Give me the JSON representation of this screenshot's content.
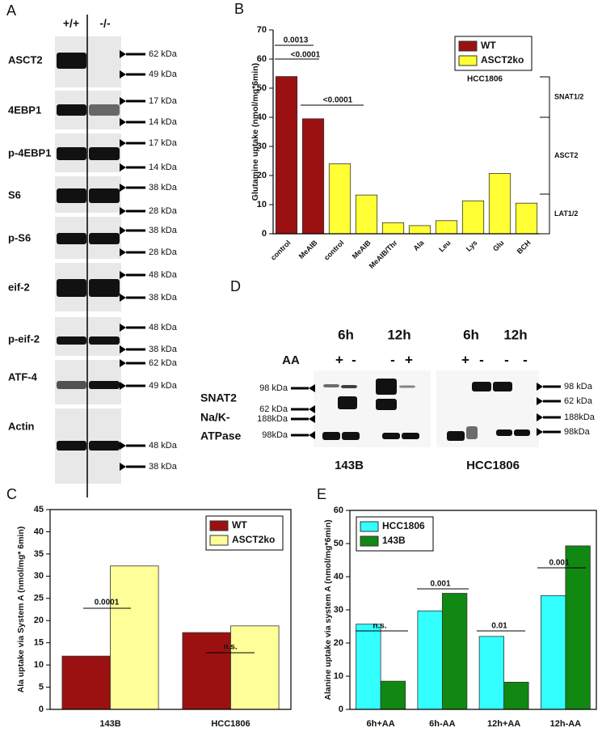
{
  "blot_a": {
    "panel": "A",
    "columns": [
      "+/+",
      "-/-"
    ],
    "rows": [
      {
        "label": "ASCT2",
        "markers": [
          "62 kDa",
          "49 kDa"
        ]
      },
      {
        "label": "4EBP1",
        "markers": [
          "17 kDa",
          "14 kDa"
        ]
      },
      {
        "label": "p-4EBP1",
        "markers": [
          "17 kDa",
          "14 kDa"
        ]
      },
      {
        "label": "S6",
        "markers": [
          "38 kDa",
          "28 kDa"
        ]
      },
      {
        "label": "p-S6",
        "markers": [
          "38 kDa",
          "28 kDa"
        ]
      },
      {
        "label": "eif-2",
        "markers": [
          "48 kDa",
          "38 kDa"
        ]
      },
      {
        "label": "p-eif-2",
        "markers": [
          "48 kDa",
          "38 kDa"
        ]
      },
      {
        "label": "ATF-4",
        "markers": [
          "62 kDa",
          "49 kDa"
        ]
      },
      {
        "label": "Actin",
        "markers": [
          "48 kDa",
          "38 kDa"
        ]
      }
    ]
  },
  "blot_d": {
    "panel": "D",
    "time_labels": [
      "6h",
      "12h",
      "6h",
      "12h"
    ],
    "aa_label": "AA",
    "aa_signs": [
      "+",
      "-",
      "-",
      "+",
      "+",
      "-",
      "-",
      "-"
    ],
    "rows": [
      {
        "label": [
          "SNAT2"
        ],
        "left_markers": [
          "98 kDa",
          "62 kDa"
        ],
        "right_markers": [
          "98 kDa",
          "62 kDa"
        ]
      },
      {
        "label": [
          "Na/K-",
          "ATPase"
        ],
        "left_markers": [
          "188kDa",
          "98kDa"
        ],
        "right_markers": [
          "188kDa",
          "98kDa"
        ]
      }
    ],
    "cell_lines": [
      "143B",
      "HCC1806"
    ]
  },
  "chart_data": [
    {
      "type": "bar",
      "panel": "B",
      "y_label": "Glutamine uptake (nmol/mg*6min)",
      "categories": [
        "control",
        "MeAIB",
        "control",
        "MeAIB",
        "MeAIB/Thr",
        "Ala",
        "Leu",
        "Lys",
        "Glu",
        "BCH"
      ],
      "series": [
        {
          "name": "WT",
          "color": "#9b1111",
          "values": [
            54,
            39.5,
            null,
            null,
            null,
            null,
            null,
            null,
            null,
            null
          ]
        },
        {
          "name": "ASCT2ko",
          "color": "#ffff33",
          "values": [
            null,
            null,
            24,
            13.3,
            3.8,
            2.8,
            4.5,
            11.3,
            20.7,
            10.5
          ]
        }
      ],
      "ylim": [
        0,
        70
      ],
      "yticks": [
        0,
        10,
        20,
        30,
        40,
        50,
        60,
        70
      ],
      "legend": "upper right",
      "annotations": [
        "0.0013",
        "<0.0001",
        "<0.0001",
        "HCC1806"
      ],
      "side_labels": [
        "SNAT1/2",
        "ASCT2",
        "LAT1/2"
      ]
    },
    {
      "type": "bar",
      "panel": "C",
      "y_label": "Ala uptake via System A (nmol/mg* 6min)",
      "categories": [
        "143B",
        "HCC1806"
      ],
      "series": [
        {
          "name": "WT",
          "color": "#9b1111",
          "values": [
            12,
            17.3
          ]
        },
        {
          "name": "ASCT2ko",
          "color": "#ffff99",
          "values": [
            32.3,
            18.8
          ]
        }
      ],
      "ylim": [
        0,
        45
      ],
      "yticks": [
        0,
        5,
        10,
        15,
        20,
        25,
        30,
        35,
        40,
        45
      ],
      "legend": "upper right",
      "annotations": [
        "0.0001",
        "n.s."
      ]
    },
    {
      "type": "bar",
      "panel": "E",
      "y_label": "Alanine uptake via system A (nmol/mg*6min)",
      "categories": [
        "6h+AA",
        "6h-AA",
        "12h+AA",
        "12h-AA"
      ],
      "series": [
        {
          "name": "HCC1806",
          "color": "#33ffff",
          "values": [
            25.7,
            29.7,
            22,
            34.3
          ]
        },
        {
          "name": "143B",
          "color": "#118811",
          "values": [
            8.5,
            35,
            8.2,
            49.3
          ]
        }
      ],
      "ylim": [
        0,
        60
      ],
      "yticks": [
        0,
        10,
        20,
        30,
        40,
        50,
        60
      ],
      "legend": "upper left",
      "annotations": [
        "n.s.",
        "0.001",
        "0.01",
        "0.001"
      ]
    }
  ]
}
